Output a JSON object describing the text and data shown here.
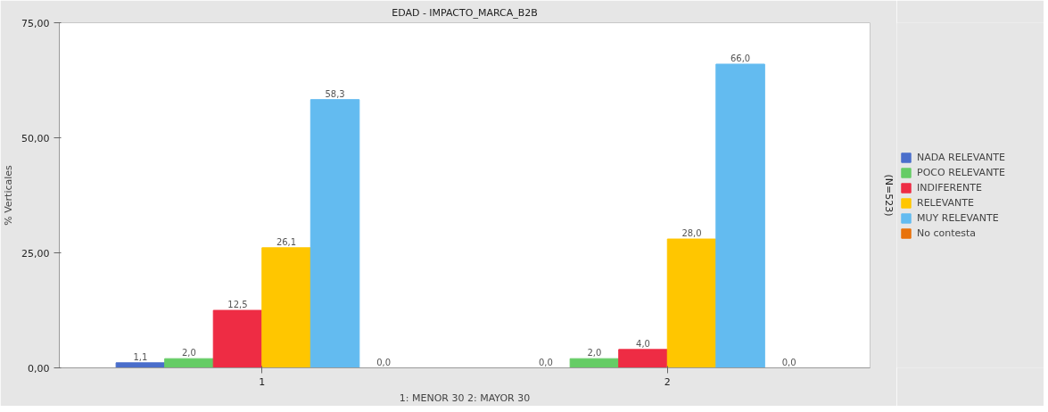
{
  "chart_data": {
    "type": "bar",
    "title": "EDAD - IMPACTO_MARCA_B2B",
    "xlabel": "1: MENOR 30 2: MAYOR 30",
    "ylabel": "% Verticales",
    "annotations": [
      "(N=523)"
    ],
    "categories": [
      "1",
      "2"
    ],
    "series": [
      {
        "name": "NADA RELEVANTE",
        "color": "#4a6ecb",
        "values": [
          1.1,
          0.0
        ],
        "value_labels": [
          "1,1",
          "0,0"
        ]
      },
      {
        "name": "POCO RELEVANTE",
        "color": "#66cc66",
        "values": [
          2.0,
          2.0
        ],
        "value_labels": [
          "2,0",
          "2,0"
        ]
      },
      {
        "name": "INDIFERENTE",
        "color": "#ee2c44",
        "values": [
          12.5,
          4.0
        ],
        "value_labels": [
          "12,5",
          "4,0"
        ]
      },
      {
        "name": "RELEVANTE",
        "color": "#ffc600",
        "values": [
          26.1,
          28.0
        ],
        "value_labels": [
          "26,1",
          "28,0"
        ]
      },
      {
        "name": "MUY RELEVANTE",
        "color": "#63bbf0",
        "values": [
          58.3,
          66.0
        ],
        "value_labels": [
          "58,3",
          "66,0"
        ]
      },
      {
        "name": "No contesta",
        "color": "#e8720a",
        "values": [
          0.0,
          0.0
        ],
        "value_labels": [
          "0,0",
          "0,0"
        ]
      }
    ],
    "ylim": [
      0,
      75
    ],
    "yticks": [
      {
        "value": 0,
        "label": "0,00"
      },
      {
        "value": 25,
        "label": "25,00"
      },
      {
        "value": 50,
        "label": "50,00"
      },
      {
        "value": 75,
        "label": "75,00"
      }
    ],
    "grid": false,
    "legend": "right"
  }
}
